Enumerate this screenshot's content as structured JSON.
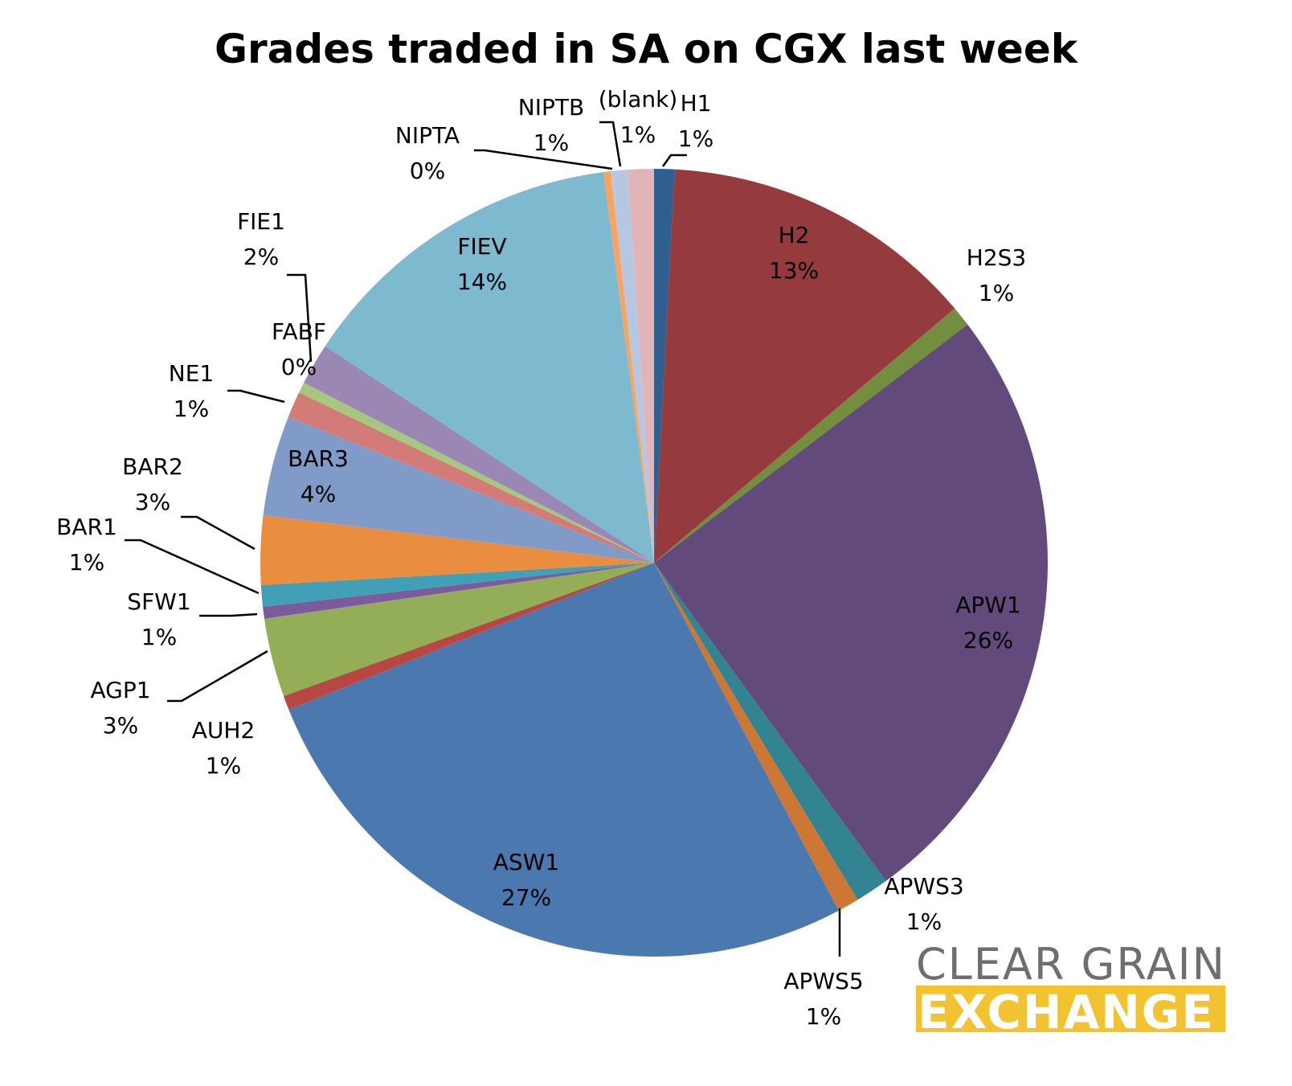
{
  "chart_data": {
    "type": "pie",
    "title": "Grades traded in SA on CGX last week",
    "start_angle_deg": 0,
    "direction": "clockwise",
    "slices": [
      {
        "label": "H1",
        "pct_label": "1%",
        "value": 0.85,
        "color": "#2e5f8f"
      },
      {
        "label": "H2",
        "pct_label": "13%",
        "value": 13.3,
        "color": "#953a3d"
      },
      {
        "label": "H2S3",
        "pct_label": "1%",
        "value": 0.85,
        "color": "#738e3e"
      },
      {
        "label": "APW1",
        "pct_label": "26%",
        "value": 25.9,
        "color": "#624b7c"
      },
      {
        "label": "APWS3",
        "pct_label": "1%",
        "value": 1.4,
        "color": "#328493"
      },
      {
        "label": "APWS5",
        "pct_label": "1%",
        "value": 0.9,
        "color": "#cc7733"
      },
      {
        "label": "ASW1",
        "pct_label": "27%",
        "value": 27.3,
        "color": "#4a78af"
      },
      {
        "label": "AUH2",
        "pct_label": "1%",
        "value": 0.6,
        "color": "#b84744"
      },
      {
        "label": "AGP1",
        "pct_label": "3%",
        "value": 3.3,
        "color": "#93ae56"
      },
      {
        "label": "SFW1",
        "pct_label": "1%",
        "value": 0.5,
        "color": "#7b5b9c"
      },
      {
        "label": "BAR1",
        "pct_label": "1%",
        "value": 0.9,
        "color": "#41a0b8"
      },
      {
        "label": "BAR2",
        "pct_label": "3%",
        "value": 2.9,
        "color": "#e98d41"
      },
      {
        "label": "BAR3",
        "pct_label": "4%",
        "value": 4.2,
        "color": "#809bc7"
      },
      {
        "label": "NE1",
        "pct_label": "1%",
        "value": 1.1,
        "color": "#d27b79"
      },
      {
        "label": "FABF",
        "pct_label": "0%",
        "value": 0.45,
        "color": "#a7c77f"
      },
      {
        "label": "FIE1",
        "pct_label": "2%",
        "value": 1.75,
        "color": "#9a87b4"
      },
      {
        "label": "FIEV",
        "pct_label": "14%",
        "value": 14.0,
        "color": "#7db9cf"
      },
      {
        "label": "NIPTA",
        "pct_label": "0%",
        "value": 0.3,
        "color": "#f8a45e"
      },
      {
        "label": "NIPTB",
        "pct_label": "1%",
        "value": 0.7,
        "color": "#b6c8e1"
      },
      {
        "label": "(blank)",
        "pct_label": "1%",
        "value": 1.1,
        "color": "#e0b5b8"
      }
    ]
  },
  "logo": {
    "line1": "CLEAR GRAIN",
    "line2": "EXCHANGE",
    "accent_color": "#f2c230",
    "text_color": "#6d6e71"
  }
}
